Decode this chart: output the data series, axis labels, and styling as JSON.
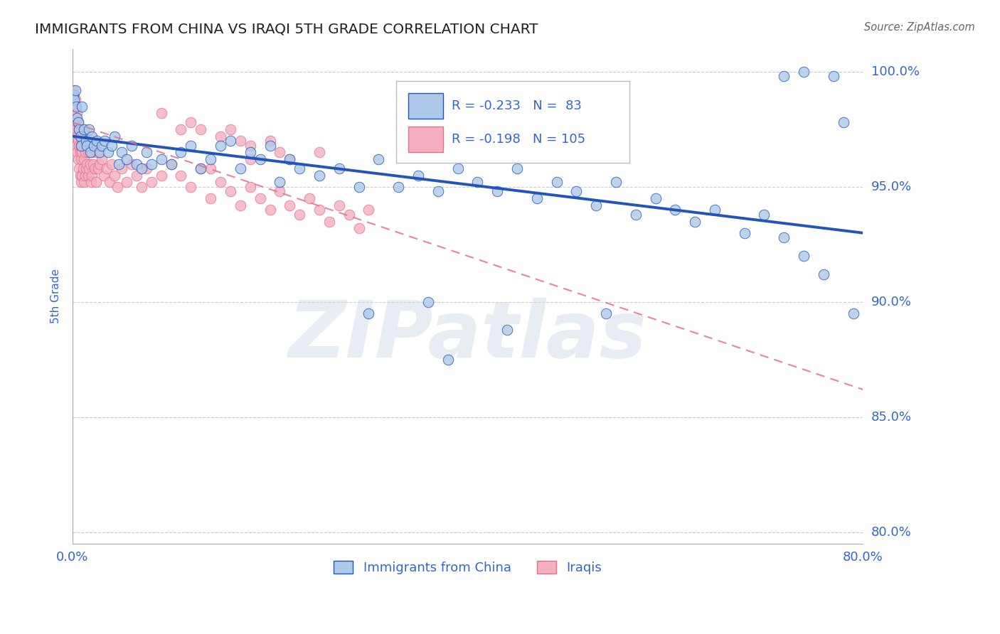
{
  "title": "IMMIGRANTS FROM CHINA VS IRAQI 5TH GRADE CORRELATION CHART",
  "source": "Source: ZipAtlas.com",
  "ylabel": "5th Grade",
  "watermark": "ZIPatlas",
  "legend_entries": [
    "Immigrants from China",
    "Iraqis"
  ],
  "R_china": -0.233,
  "N_china": 83,
  "R_iraqi": -0.198,
  "N_iraqi": 105,
  "xlim": [
    0.0,
    0.8
  ],
  "ylim": [
    0.795,
    1.01
  ],
  "yticks": [
    0.8,
    0.85,
    0.9,
    0.95,
    1.0
  ],
  "ytick_labels": [
    "80.0%",
    "85.0%",
    "90.0%",
    "95.0%",
    "100.0%"
  ],
  "xticks": [
    0.0,
    0.1,
    0.2,
    0.3,
    0.4,
    0.5,
    0.6,
    0.7,
    0.8
  ],
  "xtick_labels": [
    "0.0%",
    "",
    "",
    "",
    "",
    "",
    "",
    "",
    "80.0%"
  ],
  "color_china": "#adc8e8",
  "color_iraqi": "#f5afc0",
  "line_color_china": "#2255bb",
  "line_color_iraqi": "#e07090",
  "background": "#ffffff",
  "grid_color": "#cccccc",
  "text_color": "#3366cc",
  "china_x": [
    0.001,
    0.002,
    0.003,
    0.004,
    0.005,
    0.006,
    0.007,
    0.008,
    0.009,
    0.01,
    0.012,
    0.014,
    0.015,
    0.017,
    0.018,
    0.02,
    0.022,
    0.025,
    0.028,
    0.03,
    0.033,
    0.036,
    0.04,
    0.043,
    0.047,
    0.05,
    0.055,
    0.06,
    0.065,
    0.07,
    0.075,
    0.08,
    0.09,
    0.1,
    0.11,
    0.12,
    0.13,
    0.14,
    0.15,
    0.16,
    0.17,
    0.18,
    0.19,
    0.2,
    0.21,
    0.22,
    0.23,
    0.25,
    0.27,
    0.29,
    0.31,
    0.33,
    0.35,
    0.37,
    0.39,
    0.41,
    0.43,
    0.45,
    0.47,
    0.49,
    0.51,
    0.53,
    0.55,
    0.57,
    0.59,
    0.61,
    0.63,
    0.65,
    0.68,
    0.7,
    0.72,
    0.74,
    0.76,
    0.72,
    0.74,
    0.77,
    0.78,
    0.79,
    0.54,
    0.44,
    0.36,
    0.3,
    0.38
  ],
  "china_y": [
    0.99,
    0.988,
    0.992,
    0.985,
    0.98,
    0.978,
    0.975,
    0.972,
    0.968,
    0.985,
    0.975,
    0.97,
    0.968,
    0.975,
    0.965,
    0.972,
    0.968,
    0.97,
    0.965,
    0.968,
    0.97,
    0.965,
    0.968,
    0.972,
    0.96,
    0.965,
    0.962,
    0.968,
    0.96,
    0.958,
    0.965,
    0.96,
    0.962,
    0.96,
    0.965,
    0.968,
    0.958,
    0.962,
    0.968,
    0.97,
    0.958,
    0.965,
    0.962,
    0.968,
    0.952,
    0.962,
    0.958,
    0.955,
    0.958,
    0.95,
    0.962,
    0.95,
    0.955,
    0.948,
    0.958,
    0.952,
    0.948,
    0.958,
    0.945,
    0.952,
    0.948,
    0.942,
    0.952,
    0.938,
    0.945,
    0.94,
    0.935,
    0.94,
    0.93,
    0.938,
    0.928,
    0.92,
    0.912,
    0.998,
    1.0,
    0.998,
    0.978,
    0.895,
    0.895,
    0.888,
    0.9,
    0.895,
    0.875
  ],
  "iraqi_x": [
    0.001,
    0.001,
    0.002,
    0.002,
    0.003,
    0.003,
    0.003,
    0.004,
    0.004,
    0.004,
    0.005,
    0.005,
    0.005,
    0.006,
    0.006,
    0.006,
    0.007,
    0.007,
    0.007,
    0.008,
    0.008,
    0.008,
    0.009,
    0.009,
    0.009,
    0.01,
    0.01,
    0.01,
    0.011,
    0.011,
    0.012,
    0.012,
    0.012,
    0.013,
    0.013,
    0.014,
    0.014,
    0.015,
    0.015,
    0.016,
    0.016,
    0.017,
    0.017,
    0.018,
    0.018,
    0.019,
    0.02,
    0.02,
    0.021,
    0.022,
    0.023,
    0.024,
    0.025,
    0.026,
    0.028,
    0.03,
    0.032,
    0.035,
    0.038,
    0.04,
    0.043,
    0.046,
    0.05,
    0.055,
    0.06,
    0.065,
    0.07,
    0.075,
    0.08,
    0.09,
    0.1,
    0.11,
    0.12,
    0.13,
    0.14,
    0.15,
    0.16,
    0.17,
    0.18,
    0.19,
    0.2,
    0.21,
    0.22,
    0.23,
    0.24,
    0.25,
    0.26,
    0.27,
    0.28,
    0.29,
    0.3,
    0.15,
    0.18,
    0.22,
    0.12,
    0.2,
    0.16,
    0.25,
    0.09,
    0.13,
    0.17,
    0.21,
    0.18,
    0.14,
    0.11
  ],
  "iraqi_y": [
    0.992,
    0.985,
    0.99,
    0.982,
    0.988,
    0.978,
    0.972,
    0.985,
    0.975,
    0.968,
    0.982,
    0.972,
    0.965,
    0.978,
    0.97,
    0.962,
    0.975,
    0.968,
    0.958,
    0.972,
    0.965,
    0.955,
    0.968,
    0.962,
    0.952,
    0.975,
    0.965,
    0.955,
    0.968,
    0.958,
    0.972,
    0.962,
    0.952,
    0.965,
    0.955,
    0.968,
    0.958,
    0.972,
    0.96,
    0.965,
    0.955,
    0.968,
    0.958,
    0.97,
    0.96,
    0.952,
    0.965,
    0.955,
    0.96,
    0.968,
    0.958,
    0.952,
    0.965,
    0.958,
    0.96,
    0.962,
    0.955,
    0.958,
    0.952,
    0.96,
    0.955,
    0.95,
    0.958,
    0.952,
    0.96,
    0.955,
    0.95,
    0.958,
    0.952,
    0.955,
    0.96,
    0.955,
    0.95,
    0.958,
    0.945,
    0.952,
    0.948,
    0.942,
    0.95,
    0.945,
    0.94,
    0.948,
    0.942,
    0.938,
    0.945,
    0.94,
    0.935,
    0.942,
    0.938,
    0.932,
    0.94,
    0.972,
    0.968,
    0.962,
    0.978,
    0.97,
    0.975,
    0.965,
    0.982,
    0.975,
    0.97,
    0.965,
    0.962,
    0.958,
    0.975
  ],
  "blue_line_x": [
    0.0,
    0.8
  ],
  "blue_line_y": [
    0.972,
    0.93
  ],
  "pink_line_x": [
    0.0,
    0.8
  ],
  "pink_line_y": [
    0.978,
    0.862
  ]
}
